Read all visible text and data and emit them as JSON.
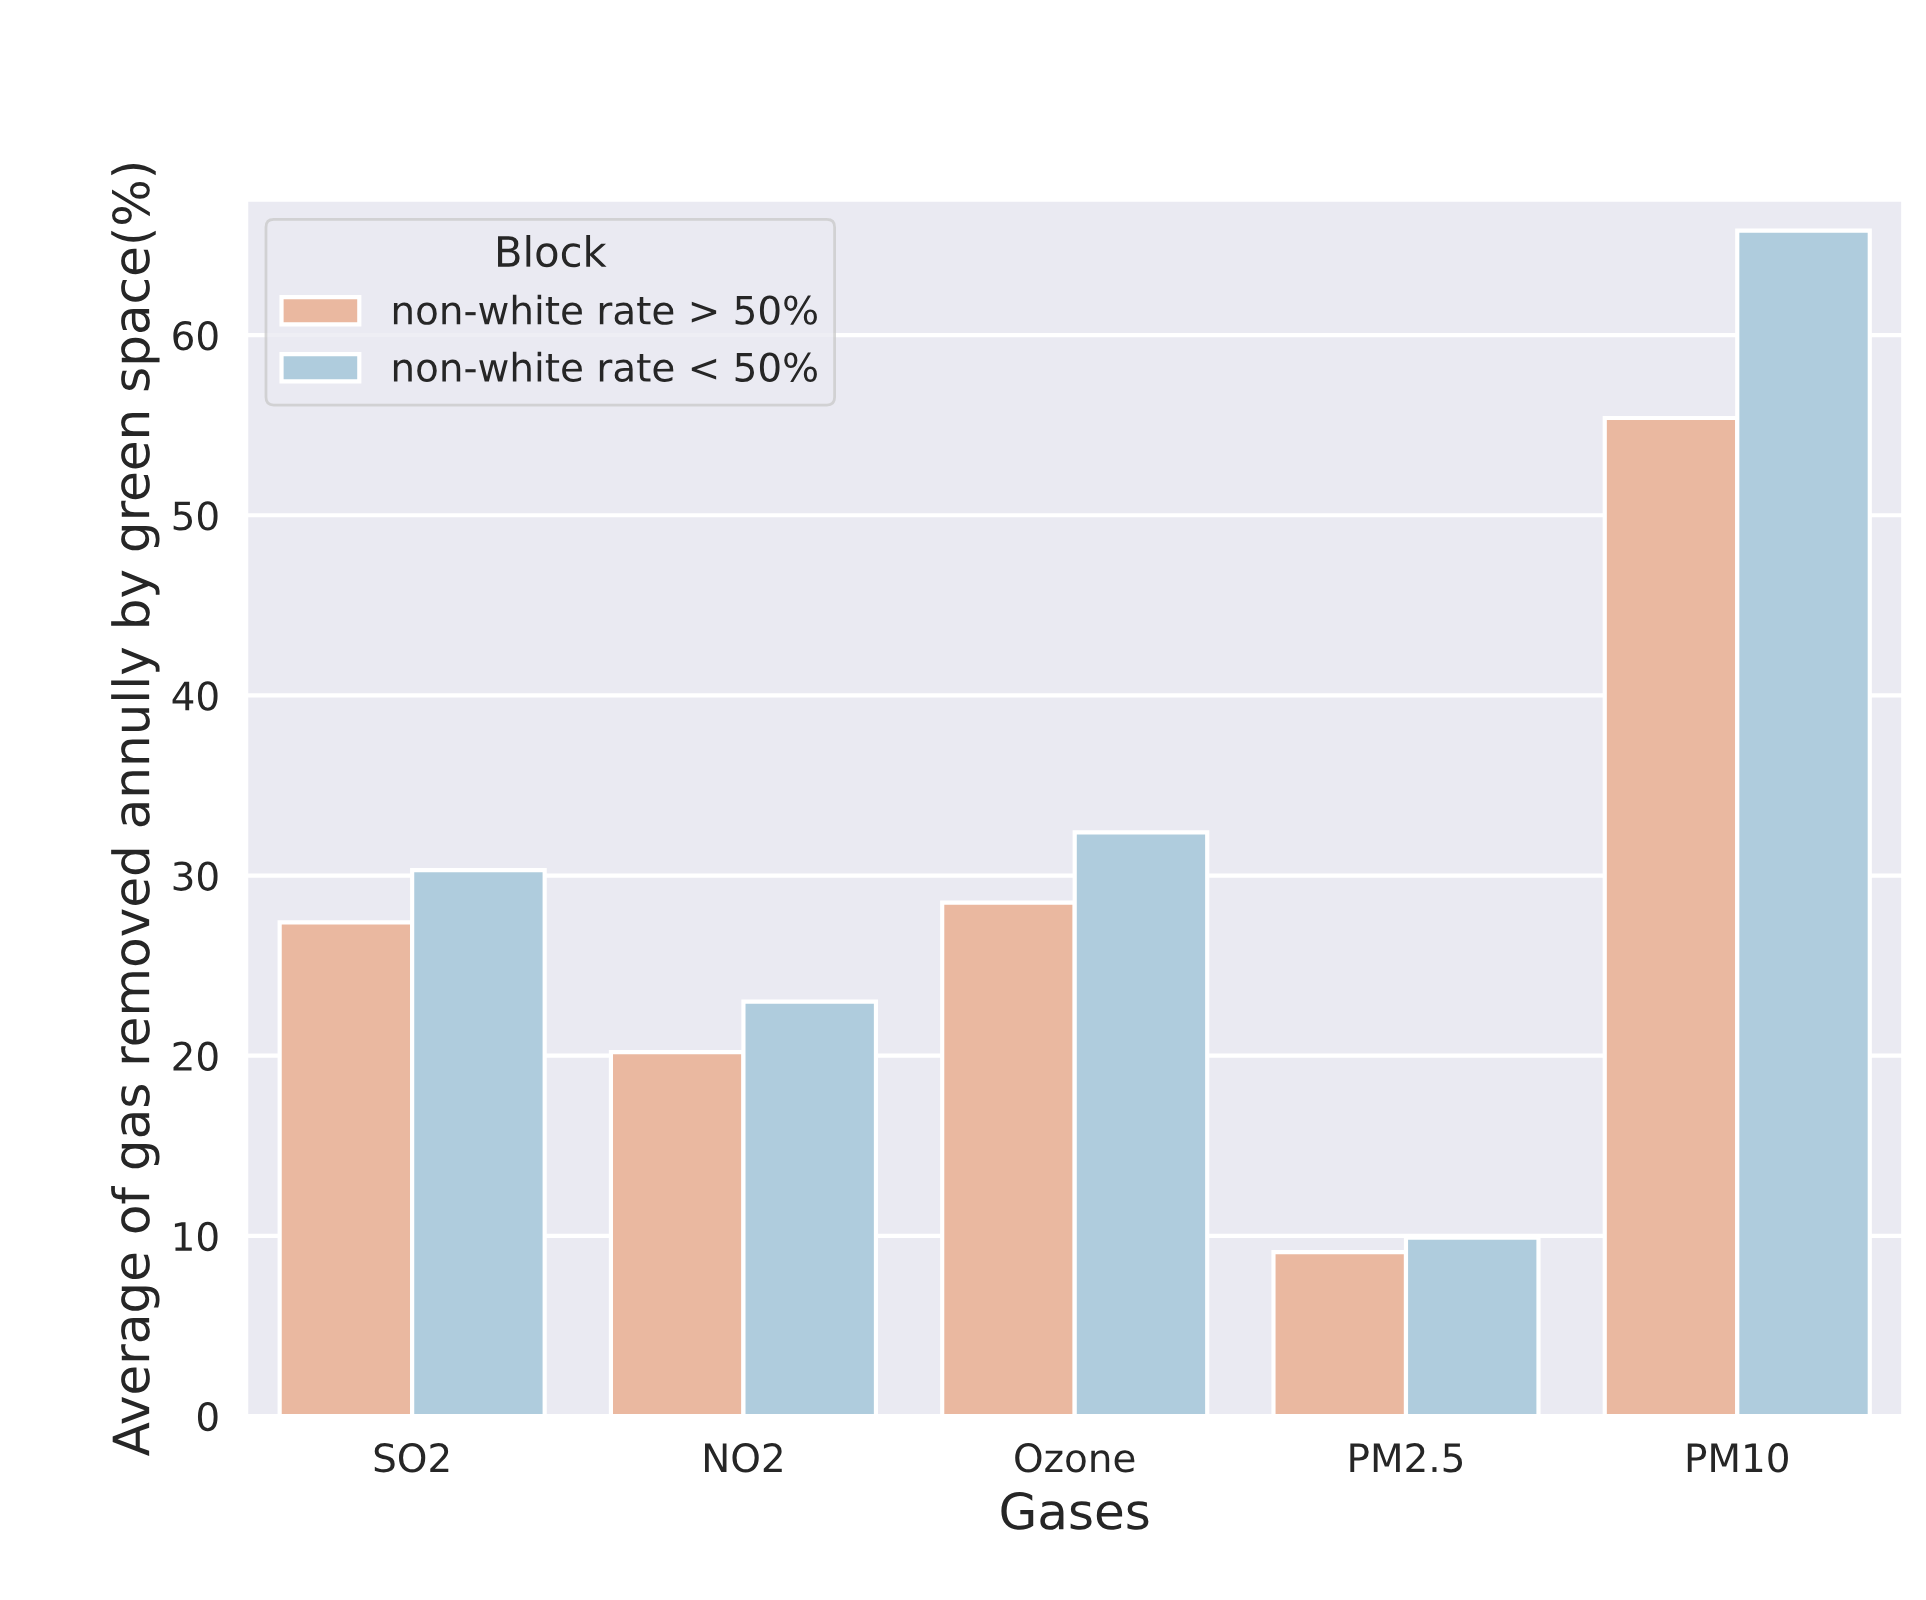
{
  "chart_data": {
    "type": "bar",
    "xlabel": "Gases",
    "ylabel": "Average of gas removed annully by green space(%)",
    "legend_title": "Block",
    "categories": [
      "SO2",
      "NO2",
      "Ozone",
      "PM2.5",
      "PM10"
    ],
    "series": [
      {
        "name": "non-white rate > 50%",
        "color": "#eab8a0",
        "values": [
          27.4,
          20.2,
          28.5,
          9.1,
          55.4
        ]
      },
      {
        "name": "non-white rate < 50%",
        "color": "#afccdd",
        "values": [
          30.3,
          23.0,
          32.4,
          9.9,
          65.8
        ]
      }
    ],
    "ylim": [
      0,
      67.5
    ],
    "yticks": [
      0,
      10,
      20,
      30,
      40,
      50,
      60
    ],
    "grid": "y",
    "legend": "top left"
  }
}
